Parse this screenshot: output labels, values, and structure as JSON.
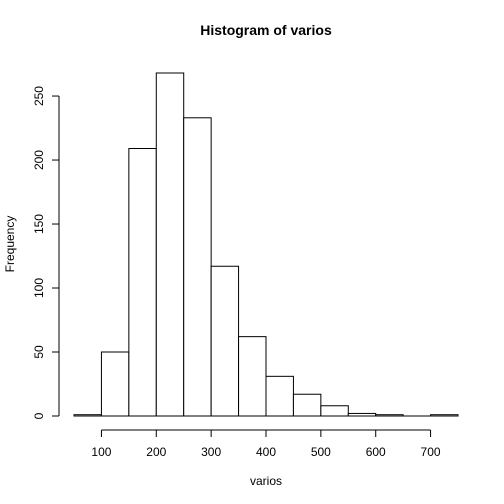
{
  "chart_data": {
    "type": "bar",
    "title": "Histogram of varios",
    "xlabel": "varios",
    "ylabel": "Frequency",
    "bins": [
      {
        "start": 50,
        "end": 100,
        "count": 1
      },
      {
        "start": 100,
        "end": 150,
        "count": 50
      },
      {
        "start": 150,
        "end": 200,
        "count": 209
      },
      {
        "start": 200,
        "end": 250,
        "count": 268
      },
      {
        "start": 250,
        "end": 300,
        "count": 233
      },
      {
        "start": 300,
        "end": 350,
        "count": 117
      },
      {
        "start": 350,
        "end": 400,
        "count": 62
      },
      {
        "start": 400,
        "end": 450,
        "count": 31
      },
      {
        "start": 450,
        "end": 500,
        "count": 17
      },
      {
        "start": 500,
        "end": 550,
        "count": 8
      },
      {
        "start": 550,
        "end": 600,
        "count": 2
      },
      {
        "start": 600,
        "end": 650,
        "count": 1
      },
      {
        "start": 650,
        "end": 700,
        "count": 0
      },
      {
        "start": 700,
        "end": 750,
        "count": 1
      }
    ],
    "xlim": [
      50,
      750
    ],
    "ylim": [
      0,
      268
    ],
    "xticks": [
      100,
      200,
      300,
      400,
      500,
      600,
      700
    ],
    "yticks": [
      0,
      50,
      100,
      150,
      200,
      250
    ],
    "grid": false,
    "legend": "none"
  }
}
